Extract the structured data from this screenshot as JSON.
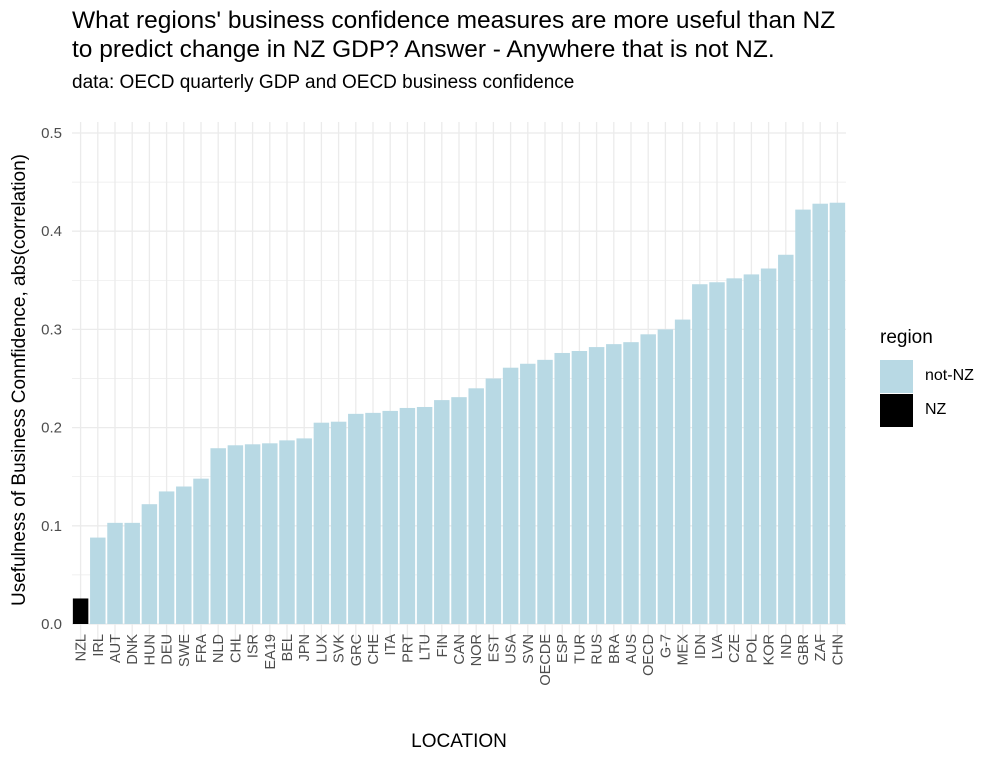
{
  "title_lines": [
    "What regions' business confidence measures are more useful than NZ",
    "to predict change in NZ GDP? Answer - Anywhere that is not NZ."
  ],
  "subtitle": "data: OECD quarterly GDP and OECD business confidence",
  "colors": {
    "not_nz": "#b8d9e4",
    "nz": "#000000",
    "grid": "#ebebeb"
  },
  "chart_data": {
    "type": "bar",
    "title": "What regions' business confidence measures are more useful than NZ to predict change in NZ GDP? Answer - Anywhere that is not NZ.",
    "subtitle": "data: OECD quarterly GDP and OECD business confidence",
    "xlabel": "LOCATION",
    "ylabel": "Usefulness of Business Connfidence, abs(correlation)",
    "ylim": [
      0,
      0.5
    ],
    "yticks": [
      "0.0",
      "0.1",
      "0.2",
      "0.3",
      "0.4",
      "0.5"
    ],
    "grid": true,
    "legend": {
      "title": "region",
      "position": "right",
      "entries": [
        "not-NZ",
        "NZ"
      ]
    },
    "categories": [
      "NZL",
      "IRL",
      "AUT",
      "DNK",
      "HUN",
      "DEU",
      "SWE",
      "FRA",
      "NLD",
      "CHL",
      "ISR",
      "EA19",
      "BEL",
      "JPN",
      "LUX",
      "SVK",
      "GRC",
      "CHE",
      "ITA",
      "PRT",
      "LTU",
      "FIN",
      "CAN",
      "NOR",
      "EST",
      "USA",
      "SVN",
      "OECDE",
      "ESP",
      "TUR",
      "RUS",
      "BRA",
      "AUS",
      "OECD",
      "G-7",
      "MEX",
      "IDN",
      "LVA",
      "CZE",
      "POL",
      "KOR",
      "IND",
      "GBR",
      "ZAF",
      "CHN"
    ],
    "values": [
      0.026,
      0.088,
      0.103,
      0.103,
      0.122,
      0.135,
      0.14,
      0.148,
      0.179,
      0.182,
      0.183,
      0.184,
      0.187,
      0.189,
      0.205,
      0.206,
      0.214,
      0.215,
      0.217,
      0.22,
      0.221,
      0.228,
      0.231,
      0.24,
      0.25,
      0.261,
      0.265,
      0.269,
      0.276,
      0.278,
      0.282,
      0.285,
      0.287,
      0.295,
      0.3,
      0.31,
      0.346,
      0.348,
      0.352,
      0.356,
      0.362,
      0.376,
      0.422,
      0.428,
      0.429
    ],
    "region": [
      "NZ",
      "not-NZ",
      "not-NZ",
      "not-NZ",
      "not-NZ",
      "not-NZ",
      "not-NZ",
      "not-NZ",
      "not-NZ",
      "not-NZ",
      "not-NZ",
      "not-NZ",
      "not-NZ",
      "not-NZ",
      "not-NZ",
      "not-NZ",
      "not-NZ",
      "not-NZ",
      "not-NZ",
      "not-NZ",
      "not-NZ",
      "not-NZ",
      "not-NZ",
      "not-NZ",
      "not-NZ",
      "not-NZ",
      "not-NZ",
      "not-NZ",
      "not-NZ",
      "not-NZ",
      "not-NZ",
      "not-NZ",
      "not-NZ",
      "not-NZ",
      "not-NZ",
      "not-NZ",
      "not-NZ",
      "not-NZ",
      "not-NZ",
      "not-NZ",
      "not-NZ",
      "not-NZ",
      "not-NZ",
      "not-NZ",
      "not-NZ"
    ]
  }
}
